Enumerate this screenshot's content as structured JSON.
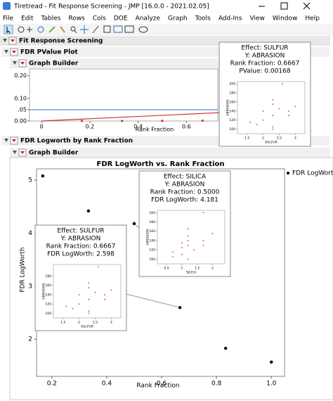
{
  "window": {
    "title": "Tiretread - Fit Response Screening - JMP [16.0.0 - 2021.02.05]"
  },
  "menu": [
    "File",
    "Edit",
    "Tables",
    "Rows",
    "Cols",
    "DOE",
    "Analyze",
    "Graph",
    "Tools",
    "Add-Ins",
    "View",
    "Window",
    "Help"
  ],
  "outline": {
    "root": "Fit Response Screening",
    "pvalue_section": "FDR PValue Plot",
    "pvalue_builder": "Graph Builder",
    "logworth_section": "FDR Logworth by Rank Fraction",
    "logworth_builder": "Graph Builder"
  },
  "pvalue_plot": {
    "type": "scatter",
    "x_label": "Rank Fraction",
    "xlim": [
      -0.05,
      0.73
    ],
    "ylim": [
      0,
      0.23
    ],
    "xticks": [
      0,
      0.2,
      0.4,
      0.6
    ],
    "yticks": [
      {
        "value": 0,
        "label": "0.00"
      },
      {
        "value": 0.05,
        "label": ".05"
      },
      {
        "value": 0.1,
        "label": "0.10"
      },
      {
        "value": 0.2,
        "label": "0.20"
      }
    ],
    "threshold": 0.05,
    "threshold_color": "#4a7fd4",
    "reference_line": {
      "x": [
        0,
        0.75
      ],
      "y": [
        0,
        0.0375
      ],
      "color": "#d03030"
    },
    "x": [
      0.1667,
      0.3333,
      0.5,
      0.6667
    ],
    "y": [
      0.0004,
      0.0006,
      0.0009,
      0.00168
    ],
    "color": "#d03030",
    "tooltip": {
      "lines": [
        "Effect: SULFUR",
        "Y: ABRASION",
        "Rank Fraction: 0.6667",
        "PValue: 0.00168"
      ],
      "plot": {
        "x_label": "SULFUR",
        "y_label": "ABRASION",
        "xlim": [
          1.2,
          3.3
        ],
        "ylim": [
          90,
          205
        ],
        "xticks": [
          1.5,
          2,
          2.5,
          3
        ],
        "yticks": [
          100,
          120,
          140,
          160,
          180,
          200
        ],
        "x": [
          1.6,
          1.8,
          2,
          2,
          2.3,
          2.3,
          2.3,
          2.3,
          2.3,
          2.5,
          2.6,
          2.8,
          2.8,
          3
        ],
        "y": [
          115,
          110,
          140,
          120,
          165,
          155,
          130,
          105,
          100,
          145,
          200,
          140,
          130,
          150
        ]
      }
    }
  },
  "logworth_plot": {
    "type": "scatter",
    "title": "FDR LogWorth vs. Rank Fraction",
    "x_label": "Rank Fraction",
    "y_label": "FDR LogWorth",
    "xlim": [
      0.144,
      1.048
    ],
    "ylim": [
      1.3,
      5.32
    ],
    "xticks": [
      0.2,
      0.4,
      0.6,
      0.8,
      {
        "value": 1,
        "label": "1.0"
      }
    ],
    "yticks": [
      2,
      3,
      4,
      5
    ],
    "series": [
      {
        "name": "FDR LogWorth",
        "color": "#000000",
        "x": [
          0.1667,
          0.3333,
          0.5,
          0.6667,
          0.8333,
          1
        ],
        "values": [
          5.08,
          4.42,
          4.181,
          2.598,
          1.83,
          1.57
        ]
      }
    ],
    "tooltips": [
      {
        "point": 2,
        "lines": [
          "Effect: SILICA",
          "Y: ABRASION",
          "Rank Fraction: 0.5000",
          "FDR LogWorth: 4.181"
        ],
        "plot": {
          "x_label": "SILICA",
          "y_label": "ABRASION",
          "xlim": [
            0.2,
            2.4
          ],
          "ylim": [
            90,
            205
          ],
          "xticks": [
            0.5,
            1,
            1.5,
            2
          ],
          "yticks": [
            100,
            120,
            140,
            160,
            180,
            200
          ],
          "x": [
            0.7,
            0.7,
            1,
            1,
            1,
            1.2,
            1.2,
            1.2,
            1.2,
            1.2,
            1.4,
            1.7,
            1.7,
            1.7,
            2
          ],
          "y": [
            115,
            105,
            135,
            125,
            110,
            165,
            150,
            140,
            130,
            100,
            120,
            200,
            140,
            130,
            155
          ]
        }
      },
      {
        "point": 3,
        "lines": [
          "Effect: SULFUR",
          "Y: ABRASION",
          "Rank Fraction: 0.6667",
          "FDR LogWorth: 2.598"
        ],
        "plot": {
          "x_label": "SULFUR",
          "y_label": "ABRASION",
          "xlim": [
            1.2,
            3.3
          ],
          "ylim": [
            90,
            205
          ],
          "xticks": [
            1.5,
            2,
            2.5,
            3
          ],
          "yticks": [
            100,
            120,
            140,
            160,
            180
          ],
          "x": [
            1.6,
            1.8,
            2,
            2,
            2.3,
            2.3,
            2.3,
            2.3,
            2.3,
            2.5,
            2.6,
            2.8,
            2.8,
            3
          ],
          "y": [
            115,
            110,
            140,
            120,
            165,
            155,
            130,
            105,
            100,
            145,
            200,
            140,
            130,
            150
          ]
        }
      }
    ]
  }
}
